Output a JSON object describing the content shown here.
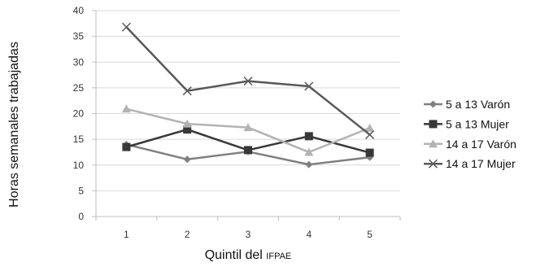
{
  "chart_data": {
    "type": "line",
    "xlabel_main": "Quintil del ",
    "xlabel_small": "IFPAE",
    "ylabel": "Horas semanales trabajadas",
    "x": [
      1,
      2,
      3,
      4,
      5
    ],
    "ylim": [
      0,
      40
    ],
    "yticks": [
      0,
      5,
      10,
      15,
      20,
      25,
      30,
      35,
      40
    ],
    "grid": true,
    "legend_position": "right",
    "series": [
      {
        "name": "5 a 13 Varón",
        "values": [
          14.0,
          11.1,
          12.6,
          10.1,
          11.5
        ],
        "color": "#7f7f7f",
        "marker": "diamond"
      },
      {
        "name": "5 a 13 Mujer",
        "values": [
          13.5,
          16.9,
          12.9,
          15.6,
          12.4
        ],
        "color": "#383838",
        "marker": "square"
      },
      {
        "name": "14 a 17 Varón",
        "values": [
          20.9,
          18.0,
          17.3,
          12.5,
          17.2
        ],
        "color": "#b3b3b3",
        "marker": "triangle"
      },
      {
        "name": "14 a 17 Mujer",
        "values": [
          36.8,
          24.4,
          26.3,
          25.3,
          15.9
        ],
        "color": "#595959",
        "marker": "x"
      }
    ]
  }
}
